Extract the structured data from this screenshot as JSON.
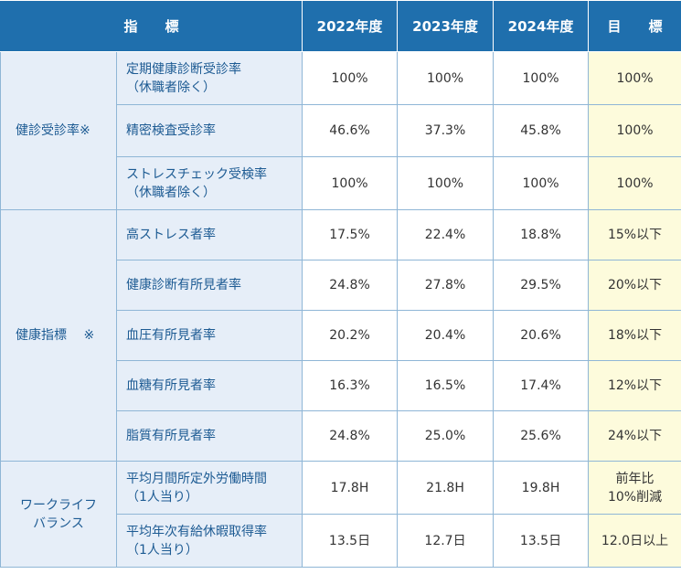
{
  "header": {
    "indicator": "指　　標",
    "y2022": "2022年度",
    "y2023": "2023年度",
    "y2024": "2024年度",
    "target": "目　　標"
  },
  "groups": [
    {
      "category": "健診受診率※",
      "rows": [
        {
          "label": "定期健康診断受診率\n（休職者除く）",
          "y2022": "100%",
          "y2023": "100%",
          "y2024": "100%",
          "target": "100%"
        },
        {
          "label": "精密検査受診率",
          "y2022": "46.6%",
          "y2023": "37.3%",
          "y2024": "45.8%",
          "target": "100%"
        },
        {
          "label": "ストレスチェック受検率\n（休職者除く）",
          "y2022": "100%",
          "y2023": "100%",
          "y2024": "100%",
          "target": "100%"
        }
      ]
    },
    {
      "category": "健康指標　 ※",
      "rows": [
        {
          "label": "高ストレス者率",
          "y2022": "17.5%",
          "y2023": "22.4%",
          "y2024": "18.8%",
          "target": "15%以下"
        },
        {
          "label": "健康診断有所見者率",
          "y2022": "24.8%",
          "y2023": "27.8%",
          "y2024": "29.5%",
          "target": "20%以下"
        },
        {
          "label": "血圧有所見者率",
          "y2022": "20.2%",
          "y2023": "20.4%",
          "y2024": "20.6%",
          "target": "18%以下"
        },
        {
          "label": "血糖有所見者率",
          "y2022": "16.3%",
          "y2023": "16.5%",
          "y2024": "17.4%",
          "target": "12%以下"
        },
        {
          "label": "脂質有所見者率",
          "y2022": "24.8%",
          "y2023": "25.0%",
          "y2024": "25.6%",
          "target": "24%以下"
        }
      ]
    },
    {
      "category": "ワークライフ\nバランス",
      "rows": [
        {
          "label": "平均月間所定外労働時間\n（1人当り）",
          "y2022": "17.8H",
          "y2023": "21.8H",
          "y2024": "19.8H",
          "target": "前年比\n10%削減"
        },
        {
          "label": "平均年次有給休暇取得率\n（1人当り）",
          "y2022": "13.5日",
          "y2023": "12.7日",
          "y2024": "13.5日",
          "target": "12.0日以上"
        }
      ]
    }
  ]
}
